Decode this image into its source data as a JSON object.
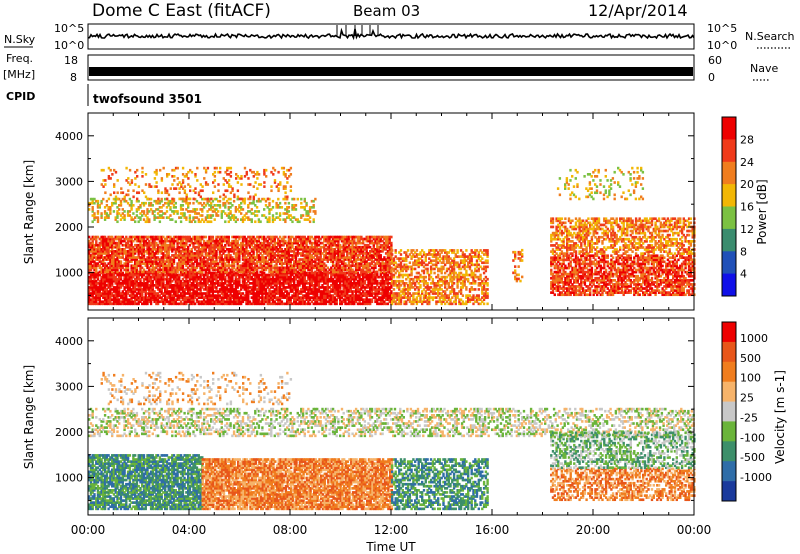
{
  "header": {
    "station": "Dome C East (fitACF)",
    "beam": "Beam 03",
    "date": "12/Apr/2014"
  },
  "side_labels": {
    "nsky": "N.Sky",
    "freq": "Freq.",
    "mhz": "[MHz]",
    "cpid": "CPID",
    "nsearch": "N.Search",
    "nave": "Nave",
    "cpid_value": "twofsound 3501"
  },
  "ticks": {
    "noise_left": [
      "10^5",
      "10^0"
    ],
    "noise_right": [
      "10^5",
      "10^0"
    ],
    "freq_left": [
      "18",
      "8"
    ],
    "nave_right": [
      "60",
      "0"
    ],
    "x_labels": [
      "00:00",
      "04:00",
      "08:00",
      "12:00",
      "16:00",
      "20:00",
      "00:00"
    ],
    "range_labels": [
      "1000",
      "2000",
      "3000",
      "4000"
    ]
  },
  "chart_data": [
    {
      "type": "heatmap",
      "title": "",
      "xlabel": "",
      "ylabel": "Slant Range [km]",
      "xlim_hours": [
        0,
        24
      ],
      "ylim_km": [
        180,
        4500
      ],
      "colorbar": {
        "label": "Power [dB]",
        "ticks": [
          "4",
          "8",
          "12",
          "16",
          "20",
          "24",
          "28"
        ],
        "range": [
          0,
          32
        ],
        "colors": [
          "#1010e8",
          "#2050b8",
          "#3a8c6e",
          "#7bc142",
          "#f2b705",
          "#f07d1e",
          "#f03a1a",
          "#ee0000"
        ]
      },
      "bands": [
        {
          "x": [
            0,
            12
          ],
          "y": [
            300,
            1000
          ],
          "level": 7,
          "density": 0.85
        },
        {
          "x": [
            0,
            12
          ],
          "y": [
            1000,
            1800
          ],
          "level": 6,
          "density": 0.8
        },
        {
          "x": [
            12,
            15.8
          ],
          "y": [
            300,
            1500
          ],
          "level": 5,
          "density": 0.55
        },
        {
          "x": [
            0,
            9
          ],
          "y": [
            2100,
            2600
          ],
          "level": 4,
          "density": 0.35
        },
        {
          "x": [
            0.5,
            8
          ],
          "y": [
            2600,
            3300
          ],
          "level": 5,
          "density": 0.15
        },
        {
          "x": [
            18.3,
            24
          ],
          "y": [
            500,
            1400
          ],
          "level": 6,
          "density": 0.7
        },
        {
          "x": [
            18.3,
            24
          ],
          "y": [
            1400,
            2200
          ],
          "level": 5,
          "density": 0.55
        },
        {
          "x": [
            18.5,
            22
          ],
          "y": [
            2600,
            3300
          ],
          "level": 4,
          "density": 0.15
        },
        {
          "x": [
            16.8,
            17.2
          ],
          "y": [
            800,
            1500
          ],
          "level": 5,
          "density": 0.4
        }
      ]
    },
    {
      "type": "heatmap",
      "title": "",
      "xlabel": "Time UT",
      "ylabel": "Slant Range [km]",
      "xlim_hours": [
        0,
        24
      ],
      "ylim_km": [
        180,
        4500
      ],
      "colorbar": {
        "label": "Velocity [m s-1]",
        "ticks": [
          "1000",
          "500",
          "100",
          "25",
          "-25",
          "-100",
          "-500",
          "-1000"
        ],
        "colors": [
          "#1a3a9c",
          "#2f6da8",
          "#3d8f6a",
          "#6ab43a",
          "#c8c8c8",
          "#f6b36a",
          "#f07d1e",
          "#e8561a",
          "#ee0000"
        ]
      },
      "bands": [
        {
          "x": [
            0,
            4.5
          ],
          "y": [
            300,
            1500
          ],
          "level": 2,
          "density": 0.8
        },
        {
          "x": [
            4.5,
            12
          ],
          "y": [
            300,
            1400
          ],
          "level": 6,
          "density": 0.85
        },
        {
          "x": [
            12,
            15.8
          ],
          "y": [
            300,
            1400
          ],
          "level": 2,
          "density": 0.55
        },
        {
          "x": [
            0,
            24
          ],
          "y": [
            1900,
            2500
          ],
          "level": 4,
          "density": 0.4
        },
        {
          "x": [
            18.3,
            24
          ],
          "y": [
            500,
            1200
          ],
          "level": 6,
          "density": 0.55
        },
        {
          "x": [
            18.3,
            24
          ],
          "y": [
            1200,
            2000
          ],
          "level": 3,
          "density": 0.5
        },
        {
          "x": [
            0.5,
            8
          ],
          "y": [
            2600,
            3300
          ],
          "level": 5,
          "density": 0.15
        }
      ]
    }
  ]
}
